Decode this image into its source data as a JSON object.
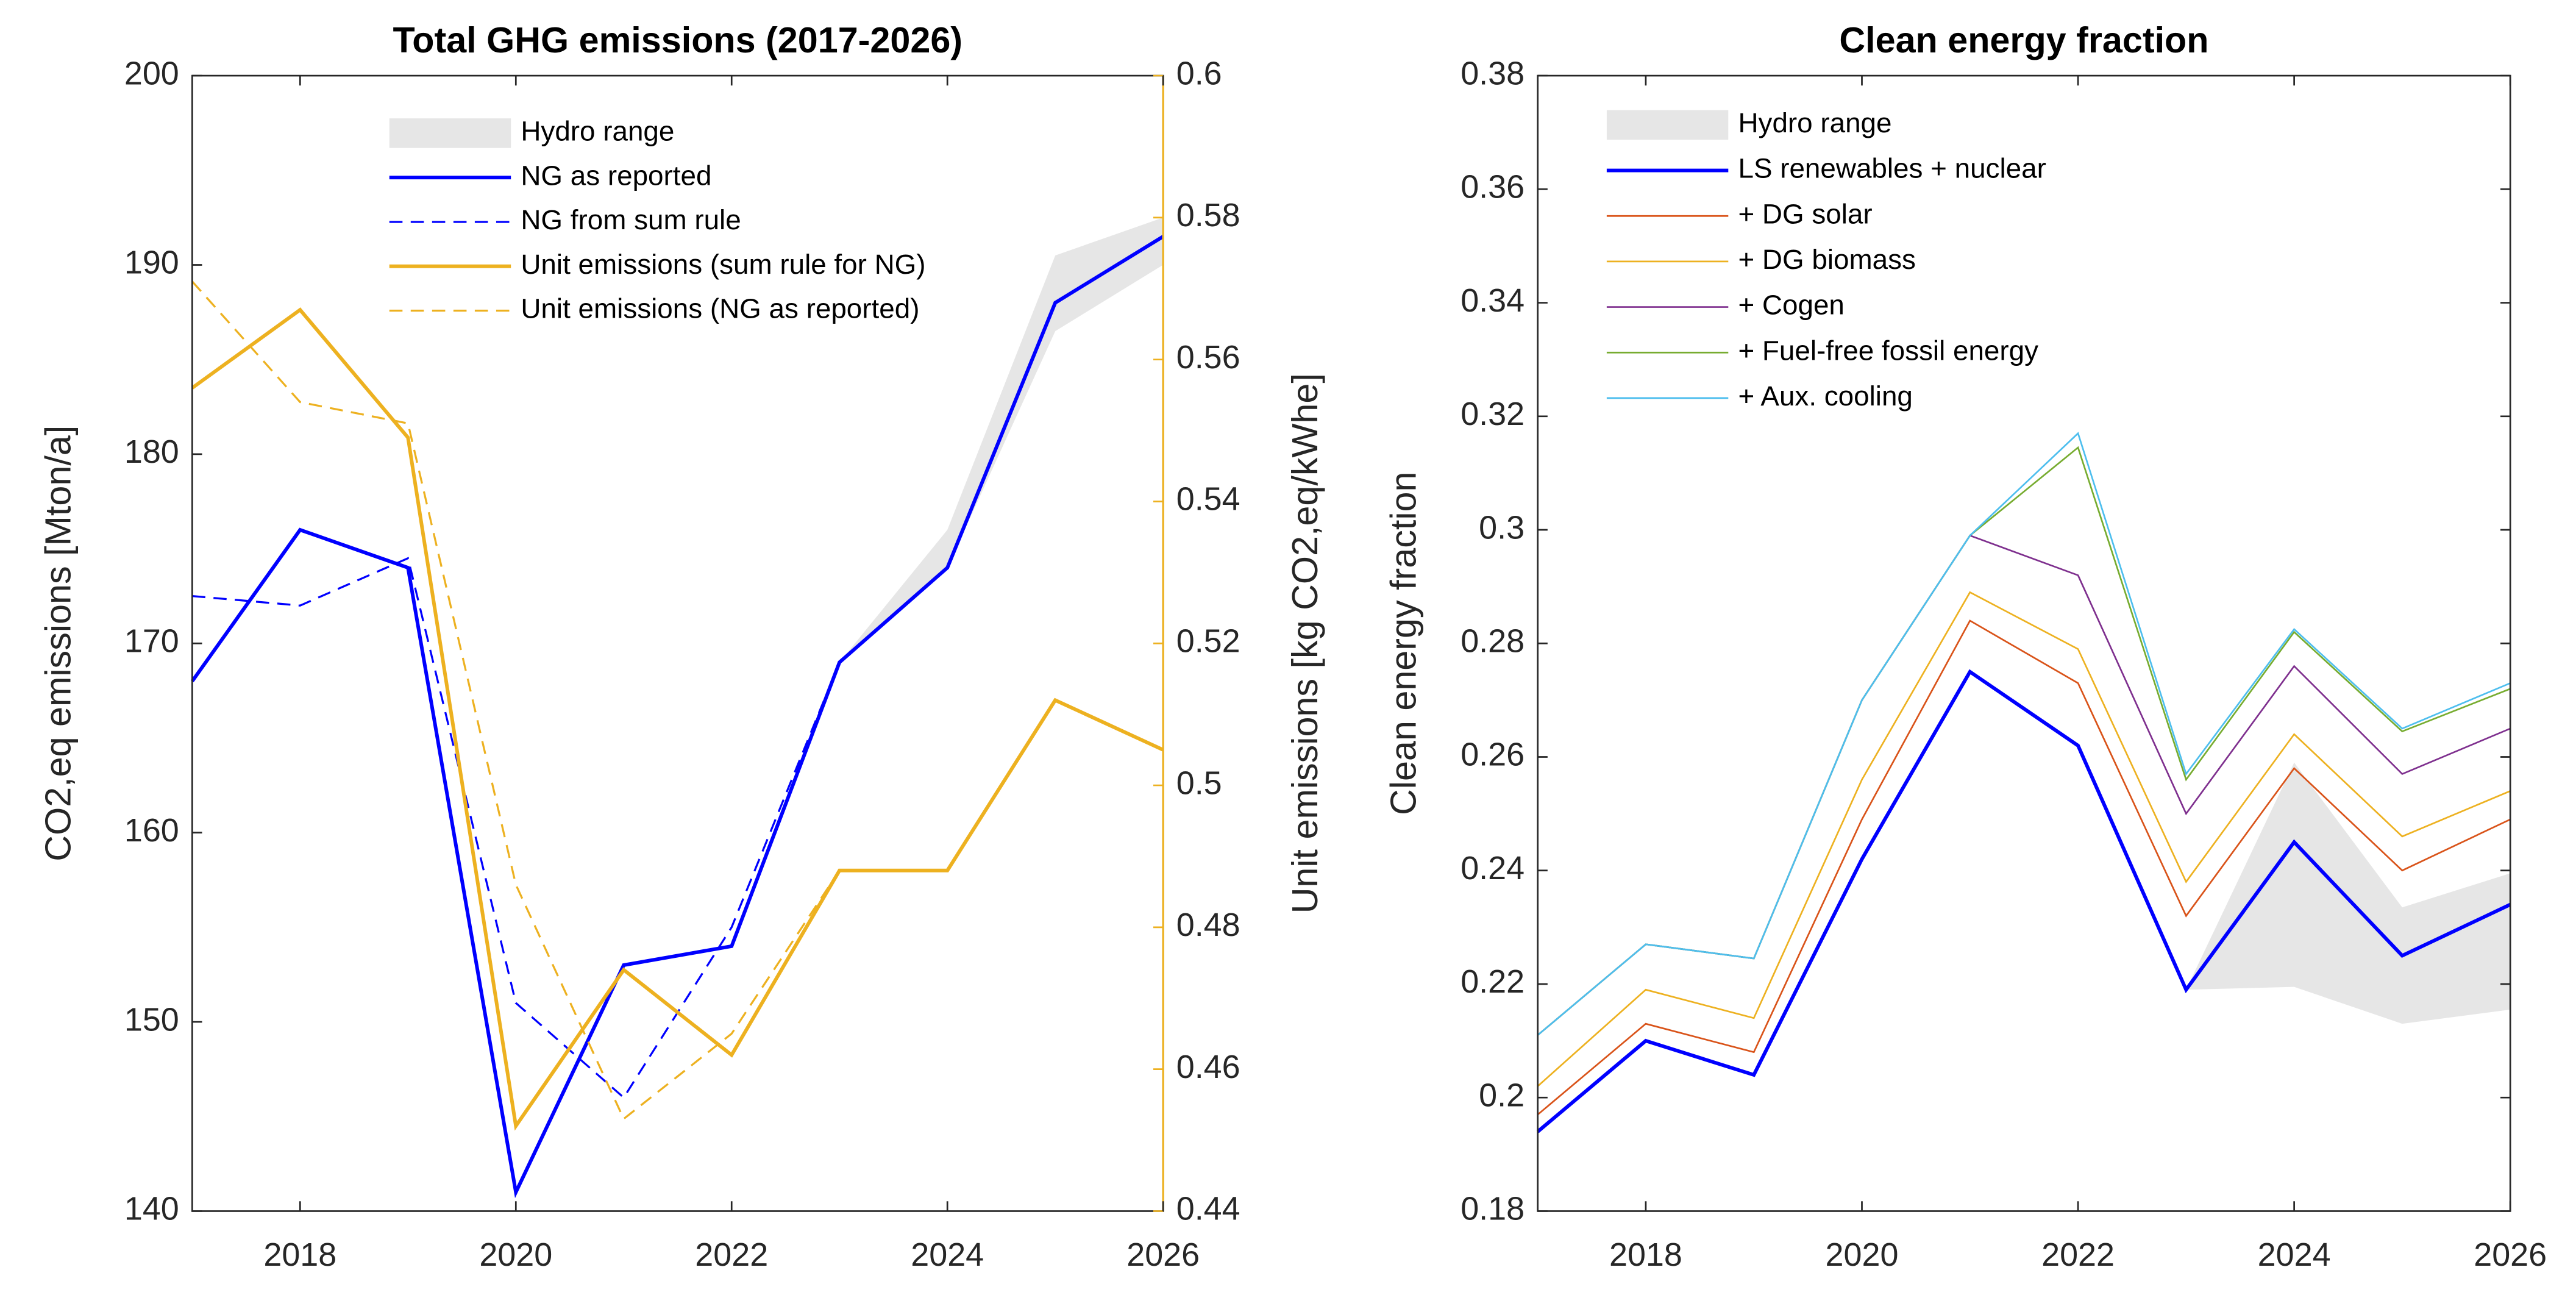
{
  "chart_data": [
    {
      "type": "line",
      "title": "Total GHG emissions (2017-2026)",
      "ylabel": "CO2,eq emissions [Mton/a]",
      "y2label": "Unit emissions [kg CO2,eq/kWhe]",
      "x": [
        2017,
        2018,
        2019,
        2020,
        2021,
        2022,
        2023,
        2024,
        2025,
        2026
      ],
      "xlim": [
        2017,
        2026
      ],
      "xticks": [
        2018,
        2020,
        2022,
        2024,
        2026
      ],
      "ylim": [
        140,
        200
      ],
      "yticks": [
        140,
        150,
        160,
        170,
        180,
        190,
        200
      ],
      "y2lim": [
        0.44,
        0.6
      ],
      "y2ticks": [
        0.44,
        0.46,
        0.48,
        0.5,
        0.52,
        0.54,
        0.56,
        0.58,
        0.6
      ],
      "y2color": "#edb120",
      "series": [
        {
          "name": "Hydro range",
          "color": "#e6e6e6",
          "style": "band",
          "lower": [
            null,
            null,
            null,
            null,
            null,
            null,
            169,
            174,
            186.5,
            190
          ],
          "upper": [
            null,
            null,
            null,
            null,
            null,
            null,
            169,
            176,
            190.5,
            192.5
          ]
        },
        {
          "name": "NG as reported",
          "color": "#0000ff",
          "style": "solid",
          "width": 2.2,
          "values": [
            168,
            176,
            174,
            141,
            153,
            154,
            169,
            174,
            188,
            191.5
          ]
        },
        {
          "name": "NG from sum rule",
          "color": "#0000ff",
          "style": "dashed",
          "width": 1.2,
          "values": [
            172.5,
            172,
            174.5,
            151,
            146,
            155,
            169,
            null,
            null,
            null
          ]
        },
        {
          "name": "Unit emissions (sum rule for NG)",
          "color": "#edb120",
          "style": "solid",
          "width": 2.2,
          "axis": "y2",
          "values": [
            0.556,
            0.567,
            0.549,
            0.452,
            0.474,
            0.462,
            0.488,
            0.488,
            0.512,
            0.505
          ]
        },
        {
          "name": "Unit emissions (NG as reported)",
          "color": "#edb120",
          "style": "dashed",
          "width": 1.2,
          "axis": "y2",
          "values": [
            0.571,
            0.554,
            0.551,
            0.486,
            0.453,
            0.465,
            0.488,
            null,
            null,
            null
          ]
        }
      ]
    },
    {
      "type": "line",
      "title": "Clean energy fraction",
      "ylabel": "Clean energy fraction",
      "x": [
        2017,
        2018,
        2019,
        2020,
        2021,
        2022,
        2023,
        2024,
        2025,
        2026
      ],
      "xlim": [
        2017,
        2026
      ],
      "xticks": [
        2018,
        2020,
        2022,
        2024,
        2026
      ],
      "ylim": [
        0.18,
        0.38
      ],
      "yticks": [
        0.18,
        0.2,
        0.22,
        0.24,
        0.26,
        0.28,
        0.3,
        0.32,
        0.34,
        0.36,
        0.38
      ],
      "series": [
        {
          "name": "Hydro range",
          "color": "#e6e6e6",
          "style": "band",
          "lower": [
            null,
            null,
            null,
            null,
            null,
            null,
            0.219,
            0.2195,
            0.213,
            0.2155
          ],
          "upper": [
            null,
            null,
            null,
            null,
            null,
            null,
            0.219,
            0.259,
            0.2335,
            0.2395
          ]
        },
        {
          "name": "LS renewables + nuclear",
          "color": "#0000ff",
          "style": "solid",
          "width": 2.2,
          "values": [
            0.194,
            0.21,
            0.204,
            0.242,
            0.275,
            0.262,
            0.219,
            0.245,
            0.225,
            0.234
          ]
        },
        {
          "name": "+ DG solar",
          "color": "#d95319",
          "style": "solid",
          "width": 1,
          "values": [
            0.197,
            0.213,
            0.208,
            0.249,
            0.284,
            0.273,
            0.232,
            0.258,
            0.24,
            0.249
          ]
        },
        {
          "name": "+ DG biomass",
          "color": "#edb120",
          "style": "solid",
          "width": 1,
          "values": [
            0.202,
            0.219,
            0.214,
            0.256,
            0.289,
            0.279,
            0.238,
            0.264,
            0.246,
            0.254
          ]
        },
        {
          "name": "+ Cogen",
          "color": "#7e2f8e",
          "style": "solid",
          "width": 1,
          "values": [
            0.211,
            0.227,
            0.2245,
            0.27,
            0.299,
            0.292,
            0.25,
            0.276,
            0.257,
            0.265
          ]
        },
        {
          "name": "+ Fuel-free fossil energy",
          "color": "#77ac30",
          "style": "solid",
          "width": 1,
          "values": [
            0.211,
            0.227,
            0.2245,
            0.27,
            0.299,
            0.3145,
            0.256,
            0.282,
            0.2645,
            0.272
          ]
        },
        {
          "name": "+ Aux. cooling",
          "color": "#4dbeee",
          "style": "solid",
          "width": 1,
          "values": [
            0.211,
            0.227,
            0.2245,
            0.27,
            0.299,
            0.317,
            0.257,
            0.2825,
            0.265,
            0.273
          ]
        }
      ]
    }
  ]
}
